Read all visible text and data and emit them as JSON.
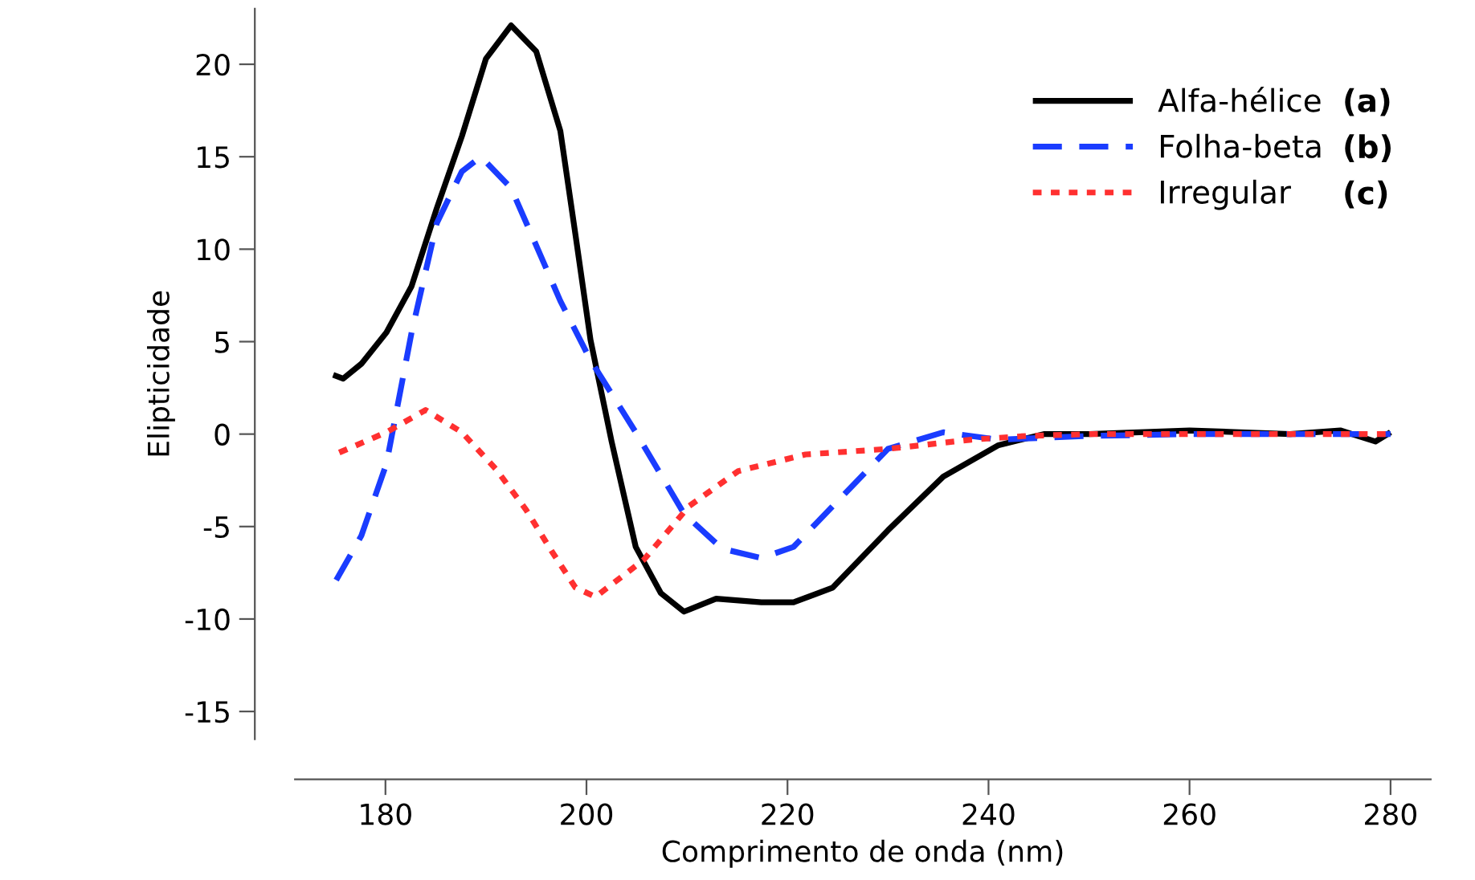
{
  "chart_data": {
    "type": "line",
    "xlabel": "Comprimento de onda (nm)",
    "ylabel": "Elipticidade",
    "xlim": [
      171,
      284
    ],
    "ylim": [
      -16.5,
      23
    ],
    "xticks": [
      180,
      200,
      220,
      240,
      260,
      280
    ],
    "yticks": [
      -15,
      -10,
      -5,
      0,
      5,
      10,
      15,
      20
    ],
    "grid": false,
    "legend": "top right",
    "marker": "none",
    "annotations": [
      "(a)",
      "(b)",
      "(c)"
    ],
    "series": [
      {
        "name": "Alfa-hélice",
        "color": "#000000",
        "line_style": "solid",
        "x": [
          174.8,
          175.8,
          177.6,
          180.1,
          182.6,
          185.1,
          187.6,
          190,
          192.5,
          195,
          197.4,
          198.9,
          200.4,
          202.5,
          204.9,
          207.4,
          209.7,
          212.9,
          217.4,
          220.6,
          224.5,
          230,
          235.5,
          241,
          245.5,
          250,
          255,
          260,
          265,
          270,
          275,
          278.5,
          280
        ],
        "values": [
          3.2,
          3.0,
          3.8,
          5.5,
          8.0,
          12.2,
          16.1,
          20.3,
          22.1,
          20.7,
          16.4,
          10.8,
          5.1,
          -0.4,
          -6.1,
          -8.6,
          -9.6,
          -8.9,
          -9.1,
          -9.1,
          -8.3,
          -5.2,
          -2.3,
          -0.6,
          0.0,
          0.0,
          0.1,
          0.2,
          0.1,
          0.0,
          0.2,
          -0.4,
          0.1
        ]
      },
      {
        "name": "Folha-beta",
        "color": "#1a3cff",
        "line_style": "dashed",
        "x": [
          175.1,
          177.6,
          180.1,
          182.6,
          185.1,
          187.6,
          189.5,
          192.5,
          195,
          197.4,
          200.4,
          204.9,
          209.7,
          213.5,
          217.4,
          220.6,
          224.5,
          230,
          235.5,
          241,
          250,
          260,
          270,
          280
        ],
        "values": [
          -7.9,
          -5.5,
          -1.6,
          5.5,
          11.4,
          14.2,
          15.0,
          13.3,
          10.2,
          7.2,
          4.0,
          0.1,
          -4.3,
          -6.2,
          -6.7,
          -6.1,
          -3.9,
          -0.8,
          0.1,
          -0.3,
          -0.1,
          0.0,
          0.0,
          0.0
        ]
      },
      {
        "name": "Irregular",
        "color": "#ff3030",
        "line_style": "dotted",
        "x": [
          175.4,
          180.1,
          184,
          187.6,
          191,
          194,
          196.5,
          198.9,
          200.9,
          205.7,
          210.2,
          215.1,
          221.8,
          230,
          238.3,
          243.8,
          250,
          260,
          270,
          280
        ],
        "values": [
          -1.0,
          0.1,
          1.3,
          0.1,
          -1.9,
          -4.1,
          -6.3,
          -8.3,
          -8.8,
          -6.8,
          -3.9,
          -2.0,
          -1.1,
          -0.8,
          -0.3,
          -0.1,
          0.0,
          0.0,
          0.0,
          0.0
        ]
      }
    ]
  }
}
